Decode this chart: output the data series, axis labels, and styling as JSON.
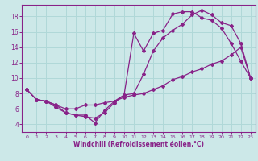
{
  "title": "",
  "xlabel": "Windchill (Refroidissement éolien,°C)",
  "ylabel": "",
  "bg_color": "#cce8e8",
  "grid_color": "#b0d8d8",
  "line_color": "#882288",
  "xlim": [
    -0.5,
    23.5
  ],
  "ylim": [
    3.0,
    19.5
  ],
  "xticks": [
    0,
    1,
    2,
    3,
    4,
    5,
    6,
    7,
    8,
    9,
    10,
    11,
    12,
    13,
    14,
    15,
    16,
    17,
    18,
    19,
    20,
    21,
    22,
    23
  ],
  "yticks": [
    4,
    6,
    8,
    10,
    12,
    14,
    16,
    18
  ],
  "curve1_x": [
    0,
    1,
    2,
    3,
    4,
    5,
    6,
    7,
    8,
    9,
    10,
    11,
    12,
    13,
    14,
    15,
    16,
    17,
    18,
    19,
    20,
    21,
    22,
    23
  ],
  "curve1_y": [
    8.5,
    7.2,
    7.0,
    6.5,
    5.5,
    5.2,
    5.2,
    4.2,
    5.8,
    7.0,
    7.8,
    15.8,
    13.5,
    15.8,
    16.2,
    18.3,
    18.6,
    18.6,
    17.8,
    17.5,
    16.5,
    14.5,
    12.2,
    10.0
  ],
  "curve2_x": [
    0,
    1,
    2,
    3,
    4,
    5,
    6,
    7,
    8,
    9,
    10,
    11,
    12,
    13,
    14,
    15,
    16,
    17,
    18,
    19,
    20,
    21,
    22,
    23
  ],
  "curve2_y": [
    8.5,
    7.2,
    7.0,
    6.2,
    5.5,
    5.2,
    5.0,
    4.8,
    5.5,
    6.8,
    7.8,
    8.0,
    10.5,
    13.5,
    15.2,
    16.2,
    17.0,
    18.2,
    18.8,
    18.2,
    17.2,
    16.8,
    14.5,
    10.0
  ],
  "curve3_x": [
    0,
    1,
    2,
    3,
    4,
    5,
    6,
    7,
    8,
    9,
    10,
    11,
    12,
    13,
    14,
    15,
    16,
    17,
    18,
    19,
    20,
    21,
    22,
    23
  ],
  "curve3_y": [
    8.5,
    7.2,
    7.0,
    6.5,
    6.0,
    6.0,
    6.5,
    6.5,
    6.8,
    7.0,
    7.5,
    7.8,
    8.0,
    8.5,
    9.0,
    9.8,
    10.2,
    10.8,
    11.2,
    11.8,
    12.2,
    13.0,
    14.0,
    10.0
  ]
}
